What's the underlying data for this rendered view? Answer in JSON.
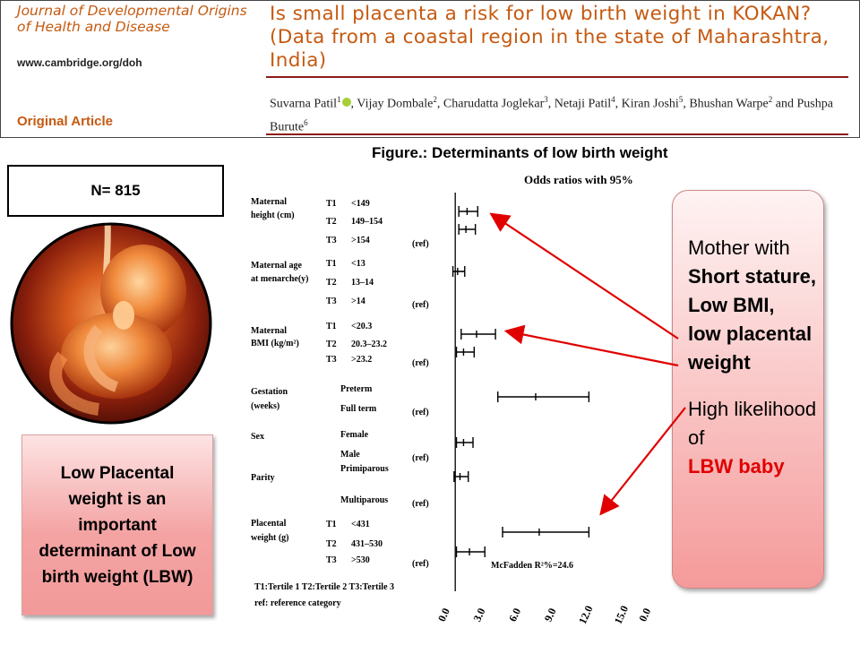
{
  "header": {
    "journal_name": "Journal of Developmental Origins of Health and Disease",
    "journal_url": "www.cambridge.org/doh",
    "article_type": "Original Article",
    "title": "Is small placenta a risk for low birth weight in KOKAN? (Data from a coastal region in the state of Maharashtra, India)",
    "authors": [
      {
        "name": "Suvarna Patil",
        "aff": "1",
        "orcid": true
      },
      {
        "name": "Vijay Dombale",
        "aff": "2"
      },
      {
        "name": "Charudatta Joglekar",
        "aff": "3"
      },
      {
        "name": "Netaji Patil",
        "aff": "4"
      },
      {
        "name": "Kiran Joshi",
        "aff": "5"
      },
      {
        "name": "Bhushan Warpe",
        "aff": "2"
      },
      {
        "name": "Pushpa Burute",
        "aff": "6"
      }
    ],
    "author_joiner": "and"
  },
  "figure_caption": "Figure.: Determinants of low birth weight",
  "sample_size": "N= 815",
  "left_note": "Low Placental weight is an important determinant of Low birth weight (LBW)",
  "right_note": {
    "line1": "Mother with",
    "bold_lines": [
      "Short stature,",
      "Low BMI,",
      "low placental weight"
    ],
    "line2": "High likelihood of",
    "highlight": "LBW baby"
  },
  "colors": {
    "accent_orange": "#c55a11",
    "rule": "#8b1a1a",
    "arrow": "#e00000",
    "highlight": "#e00000"
  },
  "chart_data": {
    "type": "forest",
    "title": "Odds ratios with 95%",
    "x_ticks": [
      "0.0",
      "3.0",
      "6.0",
      "9.0",
      "12.0",
      "15.0",
      "0.0"
    ],
    "x_range": [
      0,
      15
    ],
    "reference_line": 1.0,
    "annotation": "McFadden R²%=24.6",
    "footnote_line1": "T1:Tertile 1    T2:Tertile 2  T3:Tertile 3",
    "footnote_line2": "ref: reference category",
    "groups": [
      {
        "name_lines": [
          "Maternal",
          "height (cm)"
        ],
        "rows": [
          {
            "code": "T1",
            "level": "<149",
            "or": 2.0,
            "lo": 1.3,
            "hi": 2.9
          },
          {
            "code": "T2",
            "level": "149–154",
            "or": 1.9,
            "lo": 1.3,
            "hi": 2.7
          },
          {
            "code": "T3",
            "level": ">154",
            "ref": "(ref)"
          }
        ]
      },
      {
        "name_lines": [
          "Maternal age",
          "at menarche(y)"
        ],
        "rows": [
          {
            "code": "T1",
            "level": "<13",
            "or": 1.2,
            "lo": 0.8,
            "hi": 1.8
          },
          {
            "code": "T2",
            "level": "13–14",
            "ref": ""
          },
          {
            "code": "T3",
            "level": ">14",
            "ref": "(ref)"
          }
        ]
      },
      {
        "name_lines": [
          "Maternal",
          "BMI (kg/m²)"
        ],
        "rows": [
          {
            "code": "T1",
            "level": "<20.3",
            "or": 2.8,
            "lo": 1.5,
            "hi": 4.4
          },
          {
            "code": "T2",
            "level": "20.3–23.2",
            "or": 1.7,
            "lo": 1.1,
            "hi": 2.6
          },
          {
            "code": "T3",
            "level": ">23.2",
            "ref": "(ref)"
          }
        ]
      },
      {
        "name_lines": [
          "Gestation",
          "(weeks)"
        ],
        "rows": [
          {
            "code": "",
            "level": "Preterm",
            "or": 7.8,
            "lo": 4.6,
            "hi": 12.3
          },
          {
            "code": "",
            "level": "Full term",
            "ref": "(ref)"
          }
        ]
      },
      {
        "name_lines": [
          "Sex"
        ],
        "rows": [
          {
            "code": "",
            "level": "Female",
            "or": 1.7,
            "lo": 1.1,
            "hi": 2.5
          },
          {
            "code": "",
            "level": "Male",
            "ref": "(ref)"
          }
        ]
      },
      {
        "name_lines": [
          "Parity"
        ],
        "rows": [
          {
            "code": "",
            "level": "Primiparous",
            "or": 1.4,
            "lo": 0.9,
            "hi": 2.1
          },
          {
            "code": "",
            "level": "Multiparous",
            "ref": "(ref)"
          }
        ]
      },
      {
        "name_lines": [
          "Placental",
          "weight (g)"
        ],
        "rows": [
          {
            "code": "T1",
            "level": "<431",
            "or": 8.1,
            "lo": 5.0,
            "hi": 12.3
          },
          {
            "code": "T2",
            "level": "431–530",
            "or": 2.2,
            "lo": 1.1,
            "hi": 3.5
          },
          {
            "code": "T3",
            "level": ">530",
            "ref": "(ref)"
          }
        ]
      }
    ]
  }
}
